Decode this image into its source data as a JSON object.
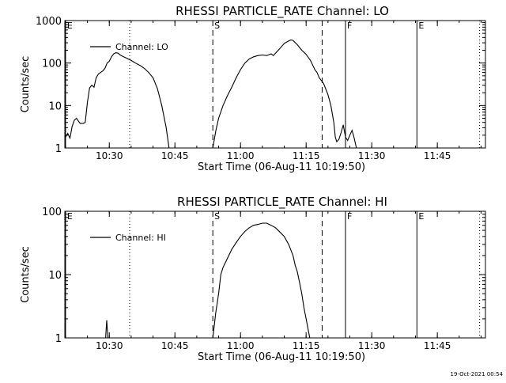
{
  "stamp": "19-Oct-2021 00:54",
  "chart_data": [
    {
      "type": "line",
      "title": "RHESSI PARTICLE_RATE Channel: LO",
      "xlabel": "Start Time (06-Aug-11 10:19:50)",
      "ylabel": "Counts/sec",
      "y_scale": "log",
      "ylim": [
        1,
        1000
      ],
      "xlim": [
        "10:19:50",
        "11:56:00"
      ],
      "x_ticks": [
        "10:30",
        "10:45",
        "11:00",
        "11:15",
        "11:30",
        "11:45"
      ],
      "y_ticks": [
        "1",
        "10",
        "100",
        "1000"
      ],
      "legend": {
        "position": "top-left"
      },
      "markers": [
        {
          "label": "E",
          "time": "10:20:00",
          "style": "solid"
        },
        {
          "label": "",
          "time": "10:34:40",
          "style": "dotted"
        },
        {
          "label": "S",
          "time": "10:53:40",
          "style": "dashed"
        },
        {
          "label": "",
          "time": "11:18:40",
          "style": "dashed"
        },
        {
          "label": "F",
          "time": "11:24:00",
          "style": "solid"
        },
        {
          "label": "E",
          "time": "11:40:20",
          "style": "solid"
        },
        {
          "label": "",
          "time": "11:54:40",
          "style": "dotted"
        }
      ],
      "series": [
        {
          "name": "Channel: LO",
          "segments": [
            [
              [
                "10:20:00",
                1.8
              ],
              [
                "10:20:30",
                2.2
              ],
              [
                "10:21:00",
                1.7
              ],
              [
                "10:21:30",
                3.2
              ],
              [
                "10:22:00",
                4.5
              ],
              [
                "10:22:30",
                5.0
              ],
              [
                "10:23:00",
                4.2
              ],
              [
                "10:23:20",
                3.8
              ],
              [
                "10:24:00",
                3.8
              ],
              [
                "10:24:30",
                4.0
              ],
              [
                "10:25:00",
                12
              ],
              [
                "10:25:30",
                26
              ],
              [
                "10:26:00",
                30
              ],
              [
                "10:26:30",
                27
              ],
              [
                "10:27:00",
                45
              ],
              [
                "10:27:30",
                55
              ],
              [
                "10:28:00",
                60
              ],
              [
                "10:28:30",
                65
              ],
              [
                "10:29:00",
                75
              ],
              [
                "10:29:30",
                100
              ],
              [
                "10:30:00",
                110
              ],
              [
                "10:30:30",
                140
              ],
              [
                "10:31:00",
                165
              ],
              [
                "10:31:30",
                175
              ],
              [
                "10:32:00",
                170
              ],
              [
                "10:32:30",
                155
              ],
              [
                "10:33:00",
                145
              ],
              [
                "10:34:00",
                130
              ],
              [
                "10:35:00",
                115
              ],
              [
                "10:36:00",
                100
              ],
              [
                "10:37:00",
                88
              ],
              [
                "10:38:00",
                75
              ],
              [
                "10:39:00",
                60
              ],
              [
                "10:40:00",
                45
              ],
              [
                "10:41:00",
                25
              ],
              [
                "10:42:00",
                10
              ],
              [
                "10:43:00",
                3
              ],
              [
                "10:43:40",
                1.0
              ]
            ],
            [
              [
                "10:53:40",
                1.0
              ],
              [
                "10:54:20",
                2.5
              ],
              [
                "10:55:00",
                5
              ],
              [
                "10:56:00",
                10
              ],
              [
                "10:57:00",
                17
              ],
              [
                "10:58:00",
                27
              ],
              [
                "10:59:00",
                45
              ],
              [
                "11:00:00",
                70
              ],
              [
                "11:01:00",
                100
              ],
              [
                "11:02:00",
                125
              ],
              [
                "11:03:00",
                140
              ],
              [
                "11:04:00",
                150
              ],
              [
                "11:05:00",
                155
              ],
              [
                "11:06:00",
                150
              ],
              [
                "11:07:00",
                165
              ],
              [
                "11:07:30",
                150
              ],
              [
                "11:08:00",
                170
              ],
              [
                "11:09:00",
                220
              ],
              [
                "11:10:00",
                290
              ],
              [
                "11:11:00",
                330
              ],
              [
                "11:11:30",
                350
              ],
              [
                "11:12:00",
                340
              ],
              [
                "11:13:00",
                270
              ],
              [
                "11:14:00",
                200
              ],
              [
                "11:15:00",
                160
              ],
              [
                "11:16:00",
                115
              ],
              [
                "11:17:00",
                70
              ],
              [
                "11:17:30",
                60
              ],
              [
                "11:18:00",
                45
              ],
              [
                "11:19:00",
                33
              ],
              [
                "11:20:00",
                18
              ],
              [
                "11:20:40",
                10
              ],
              [
                "11:21:20",
                4
              ],
              [
                "11:21:40",
                1.8
              ],
              [
                "11:22:00",
                1.4
              ],
              [
                "11:22:30",
                1.6
              ],
              [
                "11:23:00",
                2.3
              ],
              [
                "11:23:30",
                3.5
              ],
              [
                "11:24:00",
                1.8
              ],
              [
                "11:24:30",
                1.5
              ],
              [
                "11:25:00",
                2.0
              ],
              [
                "11:25:30",
                2.6
              ],
              [
                "11:26:00",
                1.7
              ],
              [
                "11:26:30",
                1.0
              ]
            ]
          ]
        }
      ]
    },
    {
      "type": "line",
      "title": "RHESSI PARTICLE_RATE Channel: HI",
      "xlabel": "Start Time (06-Aug-11 10:19:50)",
      "ylabel": "Counts/sec",
      "y_scale": "log",
      "ylim": [
        1,
        100
      ],
      "xlim": [
        "10:19:50",
        "11:56:00"
      ],
      "x_ticks": [
        "10:30",
        "10:45",
        "11:00",
        "11:15",
        "11:30",
        "11:45"
      ],
      "y_ticks": [
        "1",
        "10",
        "100"
      ],
      "legend": {
        "position": "top-left"
      },
      "markers": [
        {
          "label": "E",
          "time": "10:20:00",
          "style": "solid"
        },
        {
          "label": "",
          "time": "10:34:40",
          "style": "dotted"
        },
        {
          "label": "S",
          "time": "10:53:40",
          "style": "dashed"
        },
        {
          "label": "",
          "time": "11:18:40",
          "style": "dashed"
        },
        {
          "label": "F",
          "time": "11:24:00",
          "style": "solid"
        },
        {
          "label": "E",
          "time": "11:40:20",
          "style": "solid"
        },
        {
          "label": "",
          "time": "11:54:40",
          "style": "dotted"
        }
      ],
      "series": [
        {
          "name": "Channel: HI",
          "segments": [
            [
              [
                "10:29:10",
                1.0
              ],
              [
                "10:29:25",
                1.9
              ],
              [
                "10:29:40",
                1.0
              ]
            ],
            [
              [
                "10:53:40",
                1.0
              ],
              [
                "10:54:20",
                2.5
              ],
              [
                "10:55:00",
                5
              ],
              [
                "10:55:30",
                10
              ],
              [
                "10:56:00",
                13
              ],
              [
                "10:57:00",
                18
              ],
              [
                "10:58:00",
                25
              ],
              [
                "10:59:00",
                32
              ],
              [
                "11:00:00",
                40
              ],
              [
                "11:01:00",
                48
              ],
              [
                "11:02:00",
                55
              ],
              [
                "11:03:00",
                60
              ],
              [
                "11:04:00",
                62
              ],
              [
                "11:05:00",
                65
              ],
              [
                "11:06:00",
                65
              ],
              [
                "11:07:00",
                60
              ],
              [
                "11:08:00",
                55
              ],
              [
                "11:09:00",
                47
              ],
              [
                "11:10:00",
                40
              ],
              [
                "11:11:00",
                30
              ],
              [
                "11:12:00",
                20
              ],
              [
                "11:12:30",
                14
              ],
              [
                "11:13:00",
                11
              ],
              [
                "11:13:30",
                7.5
              ],
              [
                "11:14:00",
                5
              ],
              [
                "11:14:30",
                3
              ],
              [
                "11:15:00",
                2
              ],
              [
                "11:15:30",
                1.3
              ],
              [
                "11:15:50",
                1.0
              ]
            ]
          ]
        }
      ]
    }
  ]
}
